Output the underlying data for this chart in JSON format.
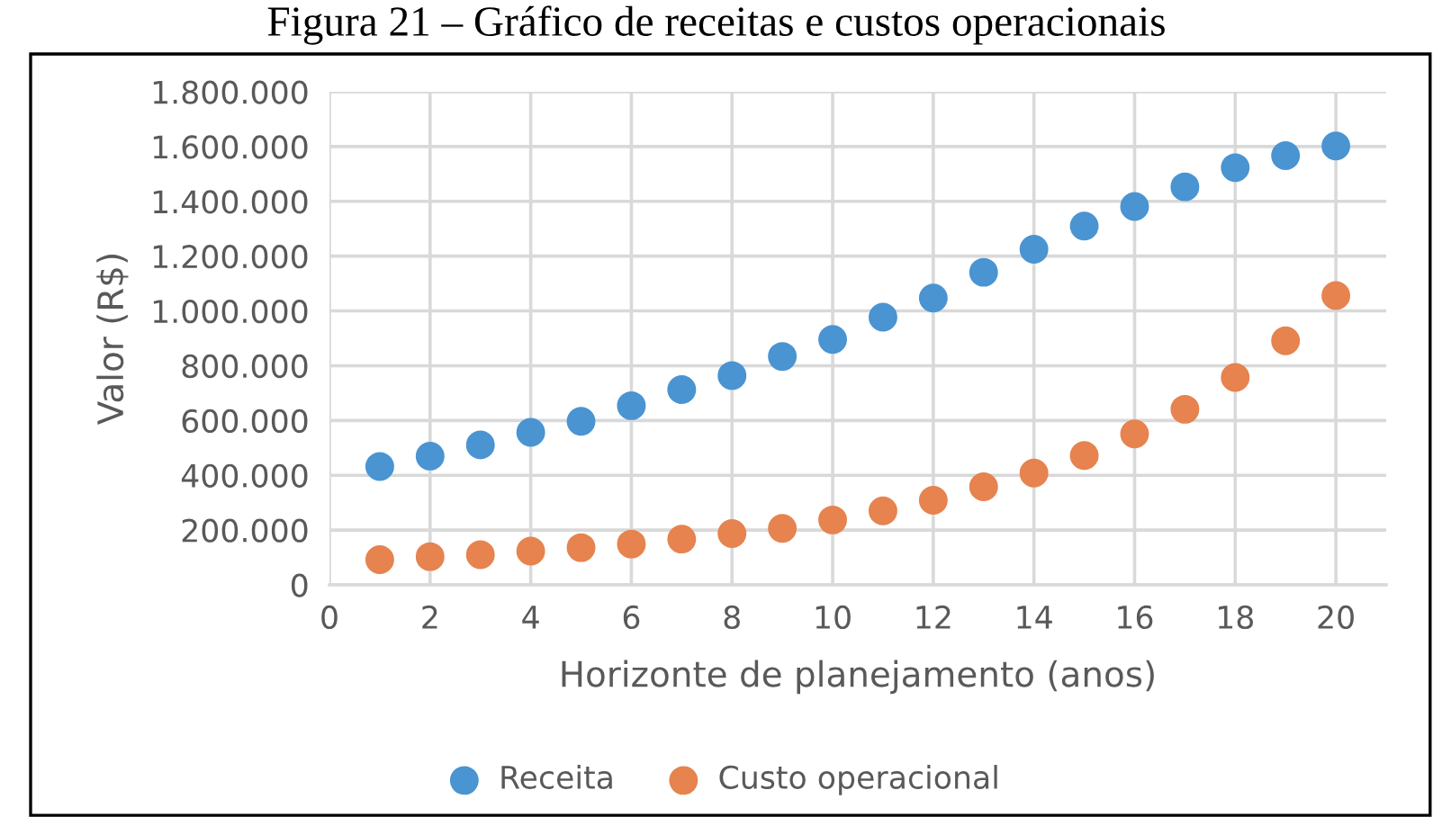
{
  "chart_data": {
    "type": "scatter",
    "title": "Figura 21 – Gráfico de receitas e custos operacionais",
    "xlabel": "Horizonte de planejamento (anos)",
    "ylabel": "Valor (R$)",
    "x": [
      1,
      2,
      3,
      4,
      5,
      6,
      7,
      8,
      9,
      10,
      11,
      12,
      13,
      14,
      15,
      16,
      17,
      18,
      19,
      20
    ],
    "series": [
      {
        "name": "Receita",
        "color": "#4a94d2",
        "values": [
          432000,
          470000,
          511000,
          557000,
          597000,
          654000,
          713000,
          764000,
          834000,
          896000,
          977000,
          1047000,
          1141000,
          1225000,
          1310000,
          1381000,
          1453000,
          1523000,
          1567000,
          1602000
        ]
      },
      {
        "name": "Custo operacional",
        "color": "#e6834f",
        "values": [
          92000,
          103000,
          110000,
          123000,
          136000,
          149000,
          167000,
          187000,
          206000,
          237000,
          270000,
          309000,
          358000,
          408000,
          472000,
          551000,
          641000,
          757000,
          891000,
          1056000
        ]
      }
    ],
    "xlim": [
      0,
      21
    ],
    "xticks": [
      0,
      2,
      4,
      6,
      8,
      10,
      12,
      14,
      16,
      18,
      20
    ],
    "ylim": [
      0,
      1800000
    ],
    "yticks": [
      0,
      {
        "value": 200000,
        "label": "200.000"
      },
      {
        "value": 400000,
        "label": "400.000"
      },
      {
        "value": 600000,
        "label": "600.000"
      },
      {
        "value": 800000,
        "label": "800.000"
      },
      {
        "value": 1000000,
        "label": "1.000.000"
      },
      {
        "value": 1200000,
        "label": "1.200.000"
      },
      {
        "value": 1400000,
        "label": "1.400.000"
      },
      {
        "value": 1600000,
        "label": "1.600.000"
      },
      {
        "value": 1800000,
        "label": "1.800.000"
      }
    ],
    "grid": true,
    "legend": "bottom",
    "marker": "circle"
  }
}
